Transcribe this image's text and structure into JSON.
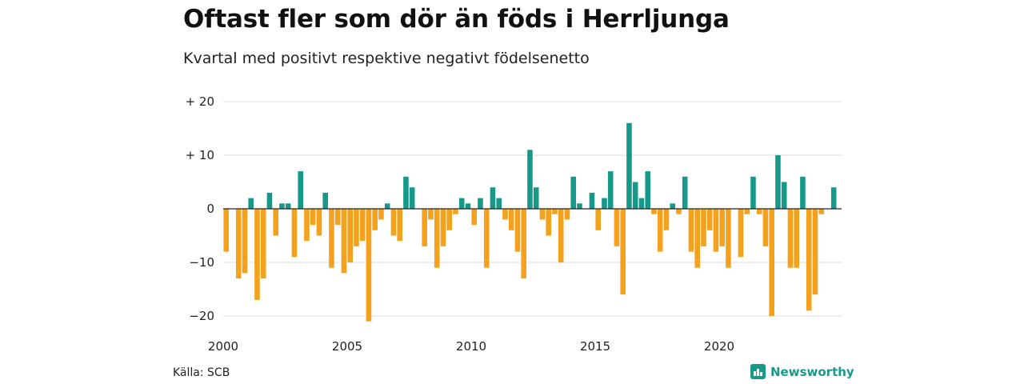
{
  "title": "Oftast fler som dör än föds i Herrljunga",
  "subtitle": "Kvartal med positivt respektive negativt födelsenetto",
  "source": "Källa: SCB",
  "brand": "Newsworthy",
  "colors": {
    "positive": "#17998a",
    "negative": "#f4a11d",
    "grid": "#dddddd",
    "zero": "#222222"
  },
  "chart_data": {
    "type": "bar",
    "xlabel": "",
    "ylabel": "",
    "ylim": [
      -22,
      20
    ],
    "yticks": [
      {
        "value": 20,
        "label": "+ 20"
      },
      {
        "value": 10,
        "label": "+ 10"
      },
      {
        "value": 0,
        "label": "0"
      },
      {
        "value": -10,
        "label": "−10"
      },
      {
        "value": -20,
        "label": "−20"
      }
    ],
    "xticks": [
      "2000",
      "2005",
      "2010",
      "2015",
      "2020"
    ],
    "first_quarter": "2000 Q1",
    "grid": true,
    "values": [
      -8,
      0,
      -13,
      -12,
      2,
      -17,
      -13,
      3,
      -5,
      1,
      1,
      -9,
      7,
      -6,
      -3,
      -5,
      3,
      -11,
      -3,
      -12,
      -10,
      -7,
      -6,
      -21,
      -4,
      -2,
      1,
      -5,
      -6,
      6,
      4,
      0,
      -7,
      -2,
      -11,
      -7,
      -4,
      -1,
      2,
      1,
      -3,
      2,
      -11,
      4,
      2,
      -2,
      -4,
      -8,
      -13,
      11,
      4,
      -2,
      -5,
      -1,
      -10,
      -2,
      6,
      1,
      0,
      3,
      -4,
      2,
      7,
      -7,
      -16,
      16,
      5,
      2,
      7,
      -1,
      -8,
      -4,
      1,
      -1,
      6,
      -8,
      -11,
      -7,
      -4,
      -8,
      -7,
      -11,
      0,
      -9,
      -1,
      6,
      -1,
      -7,
      -20,
      10,
      5,
      -11,
      -11,
      6,
      -19,
      -16,
      -1,
      0,
      4
    ]
  }
}
